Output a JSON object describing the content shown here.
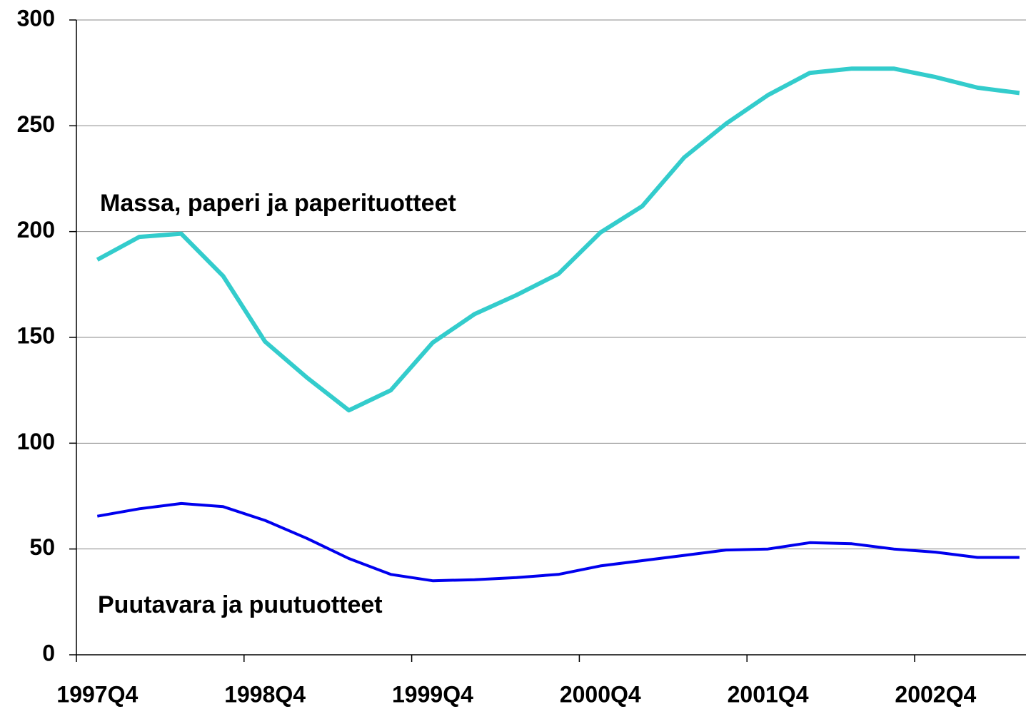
{
  "chart_data": {
    "type": "line",
    "categories": [
      "1997Q4",
      null,
      null,
      null,
      "1998Q4",
      null,
      null,
      null,
      "1999Q4",
      null,
      null,
      null,
      "2000Q4",
      null,
      null,
      null,
      "2001Q4",
      null,
      null,
      null,
      "2002Q4",
      null,
      null
    ],
    "series": [
      {
        "name": "Massa, paperi ja paperituotteet",
        "color": "#33cccc",
        "values": [
          186.7,
          197.5,
          199,
          179,
          148,
          131,
          115.5,
          125,
          147.5,
          161,
          170,
          180,
          199.5,
          212,
          235,
          251,
          264.5,
          275,
          277,
          277,
          273,
          268,
          265.5
        ]
      },
      {
        "name": "Puutavara ja puutuotteet",
        "color": "#0000ee",
        "values": [
          65.5,
          69,
          71.5,
          70,
          63.5,
          55,
          45.5,
          38,
          35,
          35.5,
          36.5,
          38,
          42,
          44.5,
          47,
          49.5,
          50,
          53,
          52.5,
          50,
          48.5,
          46,
          46
        ]
      }
    ],
    "ylim": [
      0,
      300
    ],
    "yticks": [
      0,
      50,
      100,
      150,
      200,
      250,
      300
    ],
    "grid": true
  }
}
